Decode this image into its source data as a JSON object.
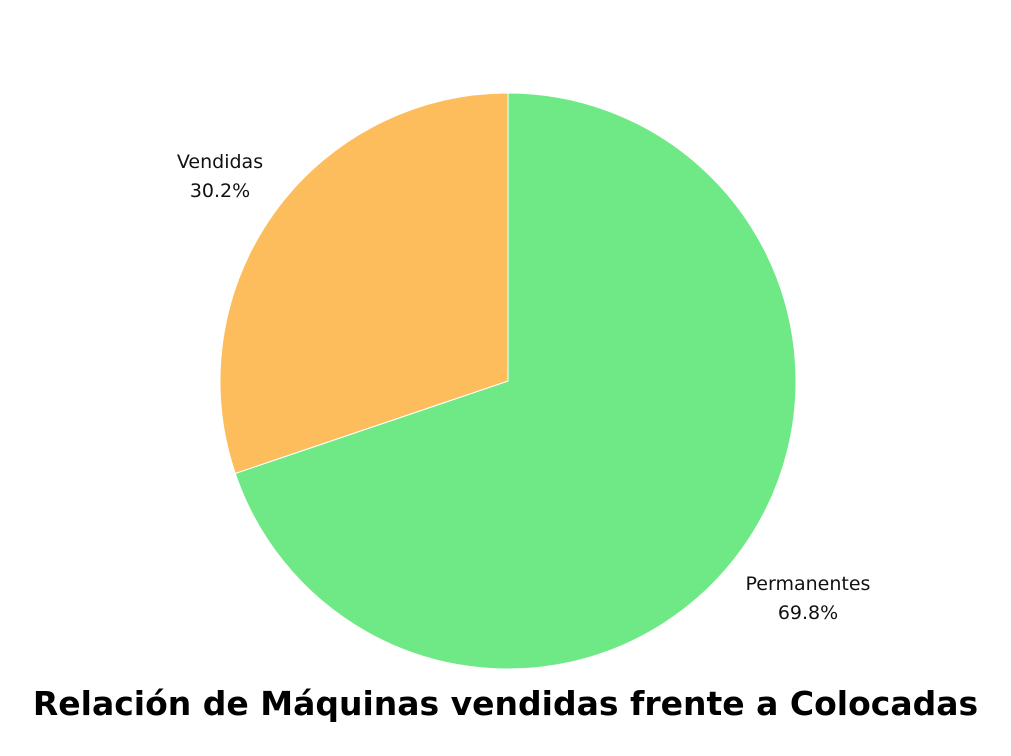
{
  "chart_data": {
    "type": "pie",
    "title": "Relación de Máquinas vendidas frente a Colocadas",
    "slices": [
      {
        "label": "Permanentes",
        "value": 69.8,
        "value_text": "69.8%",
        "color": "#6ee985"
      },
      {
        "label": "Vendidas",
        "value": 30.2,
        "value_text": "30.2%",
        "color": "#fdbd5c"
      }
    ],
    "start": "top",
    "direction": "clockwise",
    "legend": "none"
  }
}
